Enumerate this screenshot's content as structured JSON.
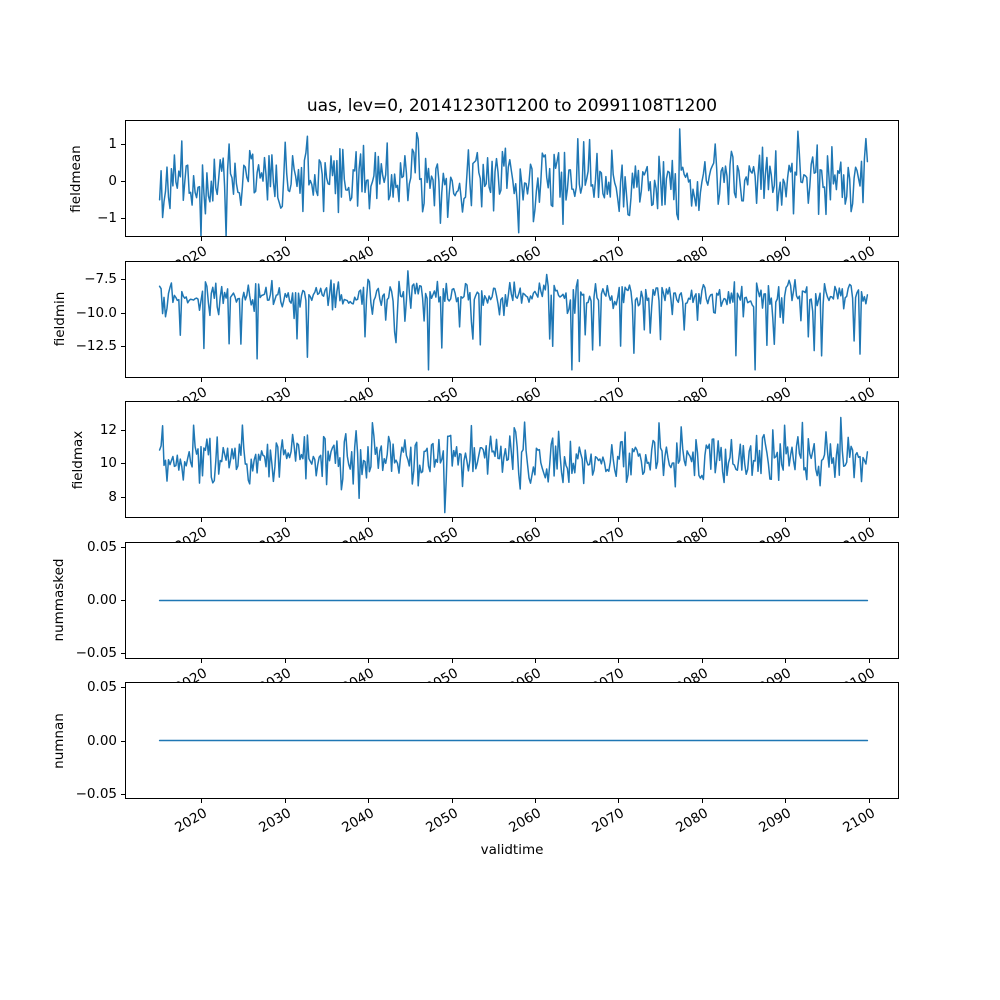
{
  "figure": {
    "background": "#ffffff"
  },
  "chart_data": {
    "type": "line",
    "title": "uas, lev=0, 20141230T1200 to 20991108T1200",
    "xlabel": "validtime",
    "line_color": "#1f77b4",
    "line_width": 1.5,
    "grid": false,
    "legend": "none",
    "x_axis": {
      "xlim": [
        2010.85,
        2103.65
      ],
      "ticks": [
        2020,
        2030,
        2040,
        2050,
        2060,
        2070,
        2080,
        2090,
        2100
      ],
      "tick_labels": [
        "2020",
        "2030",
        "2040",
        "2050",
        "2060",
        "2070",
        "2080",
        "2090",
        "2100"
      ],
      "tick_rotation_deg": 30,
      "data_x_start": 2015.0,
      "data_x_end": 2099.86,
      "n_points": 480
    },
    "subplots": [
      {
        "ylabel": "fieldmean",
        "ylim": [
          -1.52,
          1.65
        ],
        "yticks": [
          1,
          0,
          -1
        ],
        "ytick_labels": [
          "1",
          "0",
          "−1"
        ],
        "series": {
          "name": "fieldmean",
          "gen": "noise",
          "mean": 0.0,
          "std": 0.45,
          "spike_prob": 0.025,
          "spike_dir": "both",
          "spike_amp": [
            0.4,
            0.9
          ],
          "clip": [
            -1.5,
            1.58
          ],
          "seed": 11
        }
      },
      {
        "ylabel": "fieldmin",
        "ylim": [
          -14.8,
          -6.15
        ],
        "yticks": [
          -7.5,
          -10.0,
          -12.5
        ],
        "ytick_labels": [
          "−7.5",
          "−10.0",
          "−12.5"
        ],
        "series": {
          "name": "fieldmin",
          "gen": "noise",
          "mean": -8.65,
          "std": 0.5,
          "spike_prob": 0.14,
          "spike_dir": "down",
          "spike_amp": [
            0.7,
            4.8
          ],
          "clip": [
            -14.2,
            -6.6
          ],
          "seed": 77
        }
      },
      {
        "ylabel": "fieldmax",
        "ylim": [
          6.73,
          13.72
        ],
        "yticks": [
          12,
          10,
          8
        ],
        "ytick_labels": [
          "12",
          "10",
          "8"
        ],
        "series": {
          "name": "fieldmax",
          "gen": "noise",
          "mean": 10.35,
          "std": 0.8,
          "spike_prob": 0.05,
          "spike_dir": "both",
          "spike_amp": [
            0.8,
            2.2
          ],
          "clip": [
            7.05,
            13.5
          ],
          "seed": 99
        }
      },
      {
        "ylabel": "nummasked",
        "ylim": [
          -0.055,
          0.055
        ],
        "yticks": [
          0.05,
          0.0,
          -0.05
        ],
        "ytick_labels": [
          "0.05",
          "0.00",
          "−0.05"
        ],
        "series": {
          "name": "nummasked",
          "gen": "constant",
          "value": 0.0
        }
      },
      {
        "ylabel": "numnan",
        "ylim": [
          -0.055,
          0.055
        ],
        "yticks": [
          0.05,
          0.0,
          -0.05
        ],
        "ytick_labels": [
          "0.05",
          "0.00",
          "−0.05"
        ],
        "series": {
          "name": "numnan",
          "gen": "constant",
          "value": 0.0
        }
      }
    ]
  }
}
